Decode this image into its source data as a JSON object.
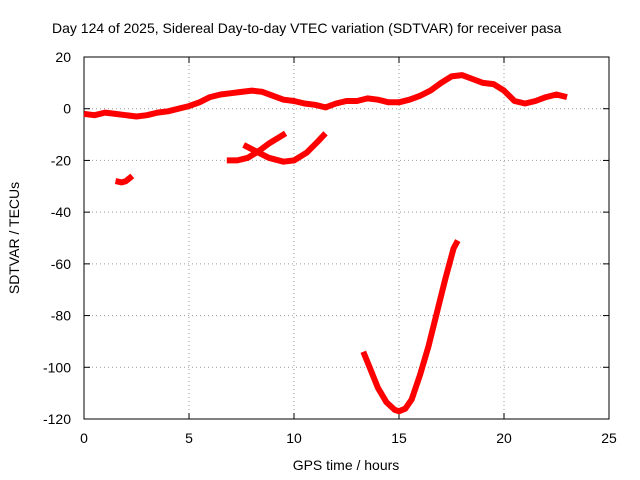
{
  "chart_data": {
    "type": "scatter",
    "title": "Day 124 of 2025, Sidereal Day-to-day VTEC variation (SDTVAR) for receiver pasa",
    "xlabel": "GPS time / hours",
    "ylabel": "SDTVAR / TECUs",
    "xlim": [
      0,
      25
    ],
    "ylim": [
      -120,
      20
    ],
    "xticks": [
      0,
      5,
      10,
      15,
      20,
      25
    ],
    "yticks": [
      -120,
      -100,
      -80,
      -60,
      -40,
      -20,
      0,
      20
    ],
    "grid": true,
    "series": [
      {
        "name": "main-track",
        "color": "#ff0000",
        "points": [
          [
            0.0,
            -2.0
          ],
          [
            0.5,
            -2.5
          ],
          [
            1.0,
            -1.5
          ],
          [
            1.5,
            -2.0
          ],
          [
            2.0,
            -2.5
          ],
          [
            2.5,
            -3.0
          ],
          [
            3.0,
            -2.5
          ],
          [
            3.5,
            -1.5
          ],
          [
            4.0,
            -1.0
          ],
          [
            4.5,
            0.0
          ],
          [
            5.0,
            1.0
          ],
          [
            5.5,
            2.5
          ],
          [
            6.0,
            4.5
          ],
          [
            6.5,
            5.5
          ],
          [
            7.0,
            6.0
          ],
          [
            7.5,
            6.5
          ],
          [
            8.0,
            7.0
          ],
          [
            8.5,
            6.5
          ],
          [
            9.0,
            5.0
          ],
          [
            9.5,
            3.5
          ],
          [
            10.0,
            3.0
          ],
          [
            10.5,
            2.0
          ],
          [
            11.0,
            1.5
          ],
          [
            11.5,
            0.5
          ],
          [
            12.0,
            2.0
          ],
          [
            12.5,
            3.0
          ],
          [
            13.0,
            3.0
          ],
          [
            13.5,
            4.0
          ],
          [
            14.0,
            3.5
          ],
          [
            14.5,
            2.5
          ],
          [
            15.0,
            2.5
          ],
          [
            15.5,
            3.5
          ],
          [
            16.0,
            5.0
          ],
          [
            16.5,
            7.0
          ],
          [
            17.0,
            10.0
          ],
          [
            17.5,
            12.5
          ],
          [
            18.0,
            13.0
          ],
          [
            18.5,
            11.5
          ],
          [
            19.0,
            10.0
          ],
          [
            19.5,
            9.5
          ],
          [
            20.0,
            7.0
          ],
          [
            20.5,
            3.0
          ],
          [
            21.0,
            2.0
          ],
          [
            21.5,
            3.0
          ],
          [
            22.0,
            4.5
          ],
          [
            22.5,
            5.5
          ],
          [
            23.0,
            4.5
          ]
        ]
      },
      {
        "name": "arc-1",
        "color": "#ff0000",
        "points": [
          [
            1.5,
            -28.0
          ],
          [
            1.8,
            -28.5
          ],
          [
            2.0,
            -28.0
          ],
          [
            2.3,
            -26.0
          ]
        ]
      },
      {
        "name": "arc-2",
        "color": "#ff0000",
        "points": [
          [
            6.8,
            -20.0
          ],
          [
            7.3,
            -20.0
          ],
          [
            7.8,
            -19.0
          ],
          [
            8.3,
            -16.5
          ],
          [
            8.8,
            -13.5
          ],
          [
            9.3,
            -11.0
          ],
          [
            9.6,
            -9.5
          ]
        ]
      },
      {
        "name": "arc-3",
        "color": "#ff0000",
        "points": [
          [
            7.6,
            -14.0
          ],
          [
            8.2,
            -16.5
          ],
          [
            8.8,
            -19.0
          ],
          [
            9.5,
            -20.5
          ],
          [
            10.0,
            -20.0
          ],
          [
            10.6,
            -17.0
          ],
          [
            11.1,
            -13.0
          ],
          [
            11.5,
            -9.5
          ]
        ]
      },
      {
        "name": "arc-4",
        "color": "#ff0000",
        "points": [
          [
            13.3,
            -94.0
          ],
          [
            13.6,
            -100.0
          ],
          [
            14.0,
            -108.0
          ],
          [
            14.4,
            -113.5
          ],
          [
            14.8,
            -116.5
          ],
          [
            15.0,
            -117.0
          ],
          [
            15.3,
            -116.0
          ],
          [
            15.6,
            -112.5
          ],
          [
            16.0,
            -103.0
          ],
          [
            16.4,
            -92.0
          ],
          [
            16.8,
            -79.0
          ],
          [
            17.2,
            -66.0
          ],
          [
            17.6,
            -54.0
          ],
          [
            17.8,
            -51.0
          ]
        ]
      }
    ]
  }
}
